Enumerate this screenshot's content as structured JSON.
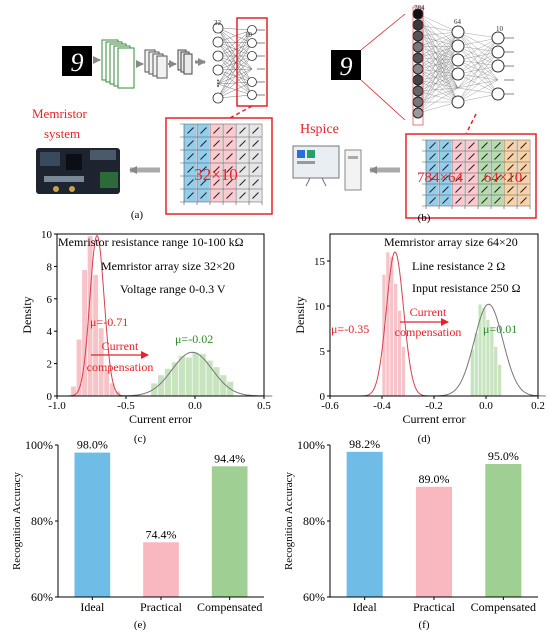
{
  "panels": {
    "a": {
      "label": "(a)",
      "system_label_1": "Memristor",
      "system_label_2": "system",
      "layer_sizes": [
        "32",
        "10"
      ],
      "array_label": "32×10"
    },
    "b": {
      "label": "(b)",
      "tool_label": "Hspice",
      "layer_sizes": [
        "784",
        "64",
        "10"
      ],
      "array_label_1": "784×64",
      "array_label_2": "64×10"
    }
  },
  "colors": {
    "red": "#e8212a",
    "hist_pink": "#f6c3c8",
    "hist_green": "#c7e4bf",
    "curve_red": "#d9404e",
    "curve_gray": "#777777",
    "green_text": "#2e8b2e",
    "bar_blue": "#6fbde6",
    "bar_pink": "#f9b8c0",
    "bar_green": "#9fcf93"
  },
  "chart_data": [
    {
      "id": "c",
      "type": "bar",
      "panel_label": "(c)",
      "xlabel": "Current error",
      "ylabel": "Density",
      "xlim": [
        -1.0,
        0.5
      ],
      "ylim": [
        0,
        10
      ],
      "xticks": [
        "-1.0",
        "-0.5",
        "0.0",
        "0.5"
      ],
      "yticks": [
        "0",
        "2",
        "4",
        "6",
        "8",
        "10"
      ],
      "annotations": [
        "Memristor resistance range 10-100 kΩ",
        "Memristor array size 32×20",
        "Voltage range 0-0.3 V"
      ],
      "arrow_label_1": "Current",
      "arrow_label_2": "compensation",
      "series": [
        {
          "mu_label": "μ=-0.71",
          "mean": -0.71,
          "sd": 0.052,
          "bin_width": 0.04,
          "bins": [
            -0.9,
            -0.86,
            -0.82,
            -0.78,
            -0.74,
            -0.7,
            -0.66,
            -0.62,
            -0.58
          ],
          "values": [
            0.6,
            3.5,
            7.8,
            9.9,
            7.5,
            4.2,
            1.6,
            0.8,
            0.3
          ]
        },
        {
          "mu_label": "μ=-0.02",
          "mean": -0.02,
          "sd": 0.145,
          "bin_width": 0.05,
          "bins": [
            -0.32,
            -0.27,
            -0.22,
            -0.17,
            -0.12,
            -0.07,
            -0.02,
            0.03,
            0.08,
            0.13,
            0.18,
            0.23
          ],
          "values": [
            0.8,
            1.3,
            1.7,
            2.1,
            2.5,
            2.4,
            2.7,
            2.6,
            2.2,
            1.8,
            1.3,
            0.9
          ]
        }
      ]
    },
    {
      "id": "d",
      "type": "bar",
      "panel_label": "(d)",
      "xlabel": "Current error",
      "ylabel": "Density",
      "xlim": [
        -0.6,
        0.2
      ],
      "ylim": [
        0,
        18
      ],
      "xticks": [
        "-0.6",
        "-0.4",
        "-0.2",
        "0.0",
        "0.2"
      ],
      "yticks": [
        "0",
        "5",
        "10",
        "15"
      ],
      "annotations": [
        "Memristor array size 64×20",
        "Line resistance 2 Ω",
        "Input resistance 250 Ω"
      ],
      "arrow_label_1": "Current",
      "arrow_label_2": "compensation",
      "series": [
        {
          "mu_label": "μ=-0.35",
          "mean": -0.35,
          "sd": 0.033,
          "bin_width": 0.015,
          "bins": [
            -0.4,
            -0.385,
            -0.37,
            -0.355,
            -0.34,
            -0.325
          ],
          "values": [
            13.5,
            16.0,
            15.5,
            12.5,
            9.5,
            5.5
          ]
        },
        {
          "mu_label": "μ=0.01",
          "mean": 0.01,
          "sd": 0.055,
          "bin_width": 0.015,
          "bins": [
            -0.06,
            -0.045,
            -0.03,
            -0.015,
            0.0,
            0.015,
            0.03,
            0.045
          ],
          "values": [
            5.2,
            7.0,
            10.2,
            9.8,
            8.5,
            7.6,
            5.5,
            3.5
          ]
        }
      ]
    },
    {
      "id": "e",
      "type": "bar",
      "panel_label": "(e)",
      "ylabel": "Recognition Accuracy",
      "ylim": [
        60,
        100
      ],
      "yticks": [
        "60%",
        "80%",
        "100%"
      ],
      "categories": [
        "Ideal",
        "Practical",
        "Compensated"
      ],
      "values": [
        98.0,
        74.4,
        94.4
      ],
      "value_labels": [
        "98.0%",
        "74.4%",
        "94.4%"
      ]
    },
    {
      "id": "f",
      "type": "bar",
      "panel_label": "(f)",
      "ylabel": "Recognition Accuracy",
      "ylim": [
        60,
        100
      ],
      "yticks": [
        "60%",
        "80%",
        "100%"
      ],
      "categories": [
        "Ideal",
        "Practical",
        "Compensated"
      ],
      "values": [
        98.2,
        89.0,
        95.0
      ],
      "value_labels": [
        "98.2%",
        "89.0%",
        "95.0%"
      ]
    }
  ]
}
